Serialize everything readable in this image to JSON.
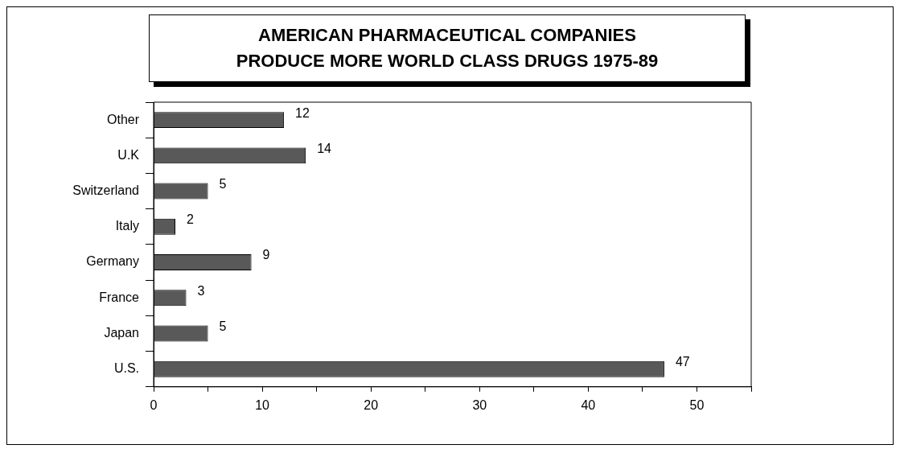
{
  "chart_data": {
    "type": "bar",
    "title": "AMERICAN PHARMACEUTICAL COMPANIES\nPRODUCE MORE WORLD CLASS DRUGS 1975-89",
    "orientation": "horizontal",
    "categories": [
      "Other",
      "U.K",
      "Switzerland",
      "Italy",
      "Germany",
      "France",
      "Japan",
      "U.S."
    ],
    "values": [
      12,
      14,
      5,
      2,
      9,
      3,
      5,
      47
    ],
    "color": "#595959",
    "xlim": [
      0,
      55
    ],
    "xticks": [
      0,
      {
        "value": 5,
        "label": null
      },
      10,
      {
        "value": 15,
        "label": null
      },
      20,
      {
        "value": 25,
        "label": null
      },
      30,
      {
        "value": 35,
        "label": null
      },
      40,
      {
        "value": 45,
        "label": null
      },
      50,
      {
        "value": 55,
        "label": null
      }
    ],
    "data_labels": true,
    "grid": false
  }
}
